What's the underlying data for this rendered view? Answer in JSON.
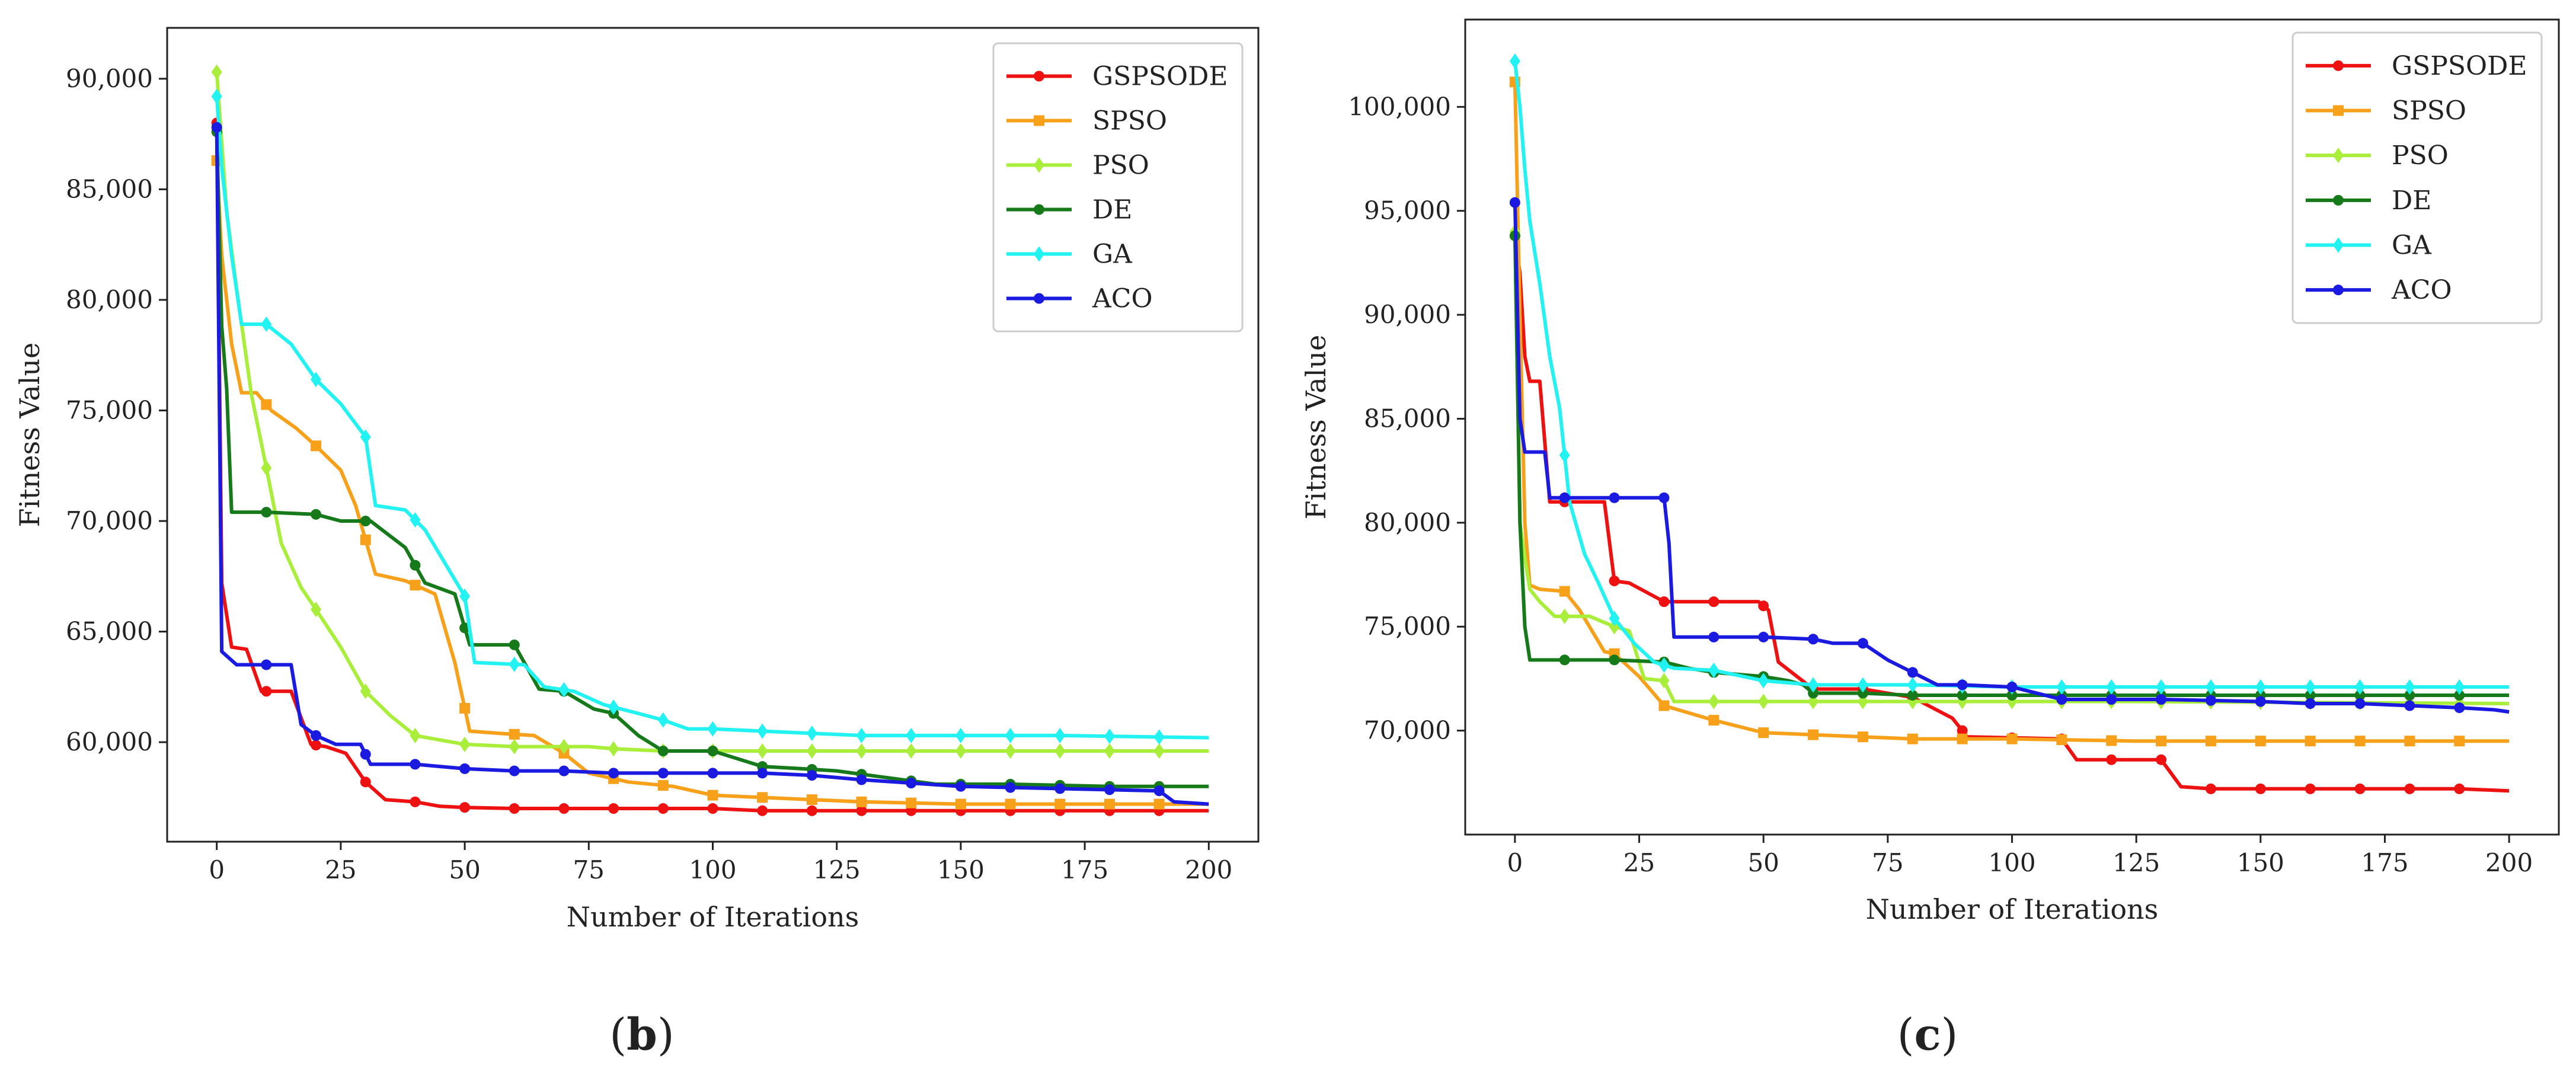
{
  "chart_data": [
    {
      "type": "line",
      "title": "",
      "panel_label": "(b)",
      "panel_label_parts": [
        "(",
        "b",
        ")"
      ],
      "xlabel": "Number of Iterations",
      "ylabel": "Fitness Value",
      "xlim": [
        -10,
        210
      ],
      "ylim": [
        55500,
        92300
      ],
      "xticks": [
        0,
        25,
        50,
        75,
        100,
        125,
        150,
        175,
        200
      ],
      "xtick_labels": [
        "0",
        "25",
        "50",
        "75",
        "100",
        "125",
        "150",
        "175",
        "200"
      ],
      "yticks": [
        60000,
        65000,
        70000,
        75000,
        80000,
        85000,
        90000
      ],
      "ytick_labels": [
        "60,000",
        "65,000",
        "70,000",
        "75,000",
        "80,000",
        "85,000",
        "90,000"
      ],
      "legend_position": "top-right",
      "series": [
        {
          "name": "GSPSODE",
          "color": "#ee1111",
          "marker": "circle",
          "x": [
            0,
            1,
            3,
            6,
            9,
            15,
            19,
            22,
            26,
            30,
            34,
            40,
            45,
            50,
            60,
            70,
            80,
            90,
            100,
            110,
            120,
            140,
            160,
            180,
            200
          ],
          "y": [
            88000,
            67200,
            64300,
            64200,
            62300,
            62300,
            59900,
            59800,
            59500,
            58200,
            57400,
            57300,
            57100,
            57050,
            57000,
            57000,
            57000,
            57000,
            57000,
            56900,
            56900,
            56900,
            56900,
            56900,
            56900
          ]
        },
        {
          "name": "SPSO",
          "color": "#f7a11b",
          "marker": "square",
          "x": [
            0,
            1,
            3,
            5,
            8,
            11,
            16,
            20,
            25,
            28,
            32,
            38,
            44,
            48,
            51,
            57,
            64,
            70,
            75,
            83,
            92,
            100,
            110,
            120,
            130,
            150,
            170,
            200
          ],
          "y": [
            86300,
            82000,
            78000,
            75800,
            75800,
            75000,
            74200,
            73400,
            72300,
            70700,
            67600,
            67300,
            66700,
            63600,
            60500,
            60400,
            60300,
            59500,
            58600,
            58200,
            58000,
            57600,
            57500,
            57400,
            57300,
            57200,
            57200,
            57200
          ]
        },
        {
          "name": "PSO",
          "color": "#a8ee3a",
          "marker": "diamond",
          "x": [
            0,
            2,
            4,
            7,
            10,
            13,
            17,
            20,
            25,
            30,
            35,
            40,
            50,
            60,
            75,
            80,
            90,
            100,
            120,
            150,
            200
          ],
          "y": [
            90300,
            84000,
            80500,
            75700,
            72400,
            69000,
            67000,
            66000,
            64300,
            62300,
            61200,
            60300,
            59900,
            59800,
            59800,
            59700,
            59600,
            59600,
            59600,
            59600,
            59600
          ]
        },
        {
          "name": "DE",
          "color": "#167a1a",
          "marker": "circle",
          "x": [
            0,
            1,
            2,
            3,
            10,
            20,
            25,
            31,
            38,
            42,
            48,
            51,
            60,
            65,
            70,
            76,
            80,
            85,
            90,
            100,
            110,
            118,
            125,
            135,
            145,
            160,
            180,
            200
          ],
          "y": [
            87600,
            78800,
            76000,
            70400,
            70400,
            70300,
            70000,
            70000,
            68800,
            67200,
            66700,
            64400,
            64400,
            62400,
            62300,
            61500,
            61300,
            60300,
            59600,
            59600,
            58900,
            58800,
            58700,
            58400,
            58100,
            58100,
            58000,
            58000
          ]
        },
        {
          "name": "GA",
          "color": "#22f2f2",
          "marker": "diamond",
          "x": [
            0,
            1,
            3,
            5,
            10,
            15,
            20,
            25,
            30,
            32,
            38,
            42,
            50,
            52,
            62,
            66,
            72,
            78,
            85,
            90,
            95,
            100,
            110,
            120,
            130,
            150,
            170,
            200
          ],
          "y": [
            89200,
            86000,
            82000,
            78900,
            78900,
            78000,
            76400,
            75300,
            73800,
            70700,
            70500,
            69600,
            66600,
            63600,
            63500,
            62500,
            62300,
            61700,
            61300,
            61000,
            60600,
            60600,
            60500,
            60400,
            60300,
            60300,
            60300,
            60200
          ]
        },
        {
          "name": "ACO",
          "color": "#1a1ae0",
          "marker": "circle",
          "x": [
            0,
            1,
            2,
            4,
            15,
            17,
            20,
            24,
            29,
            31,
            40,
            50,
            60,
            70,
            80,
            90,
            110,
            120,
            130,
            150,
            170,
            190,
            193,
            200
          ],
          "y": [
            87800,
            64100,
            63900,
            63500,
            63500,
            60800,
            60300,
            59900,
            59900,
            59000,
            59000,
            58800,
            58700,
            58700,
            58600,
            58600,
            58600,
            58500,
            58300,
            58000,
            57900,
            57800,
            57300,
            57200
          ]
        }
      ]
    },
    {
      "type": "line",
      "title": "",
      "panel_label": "(c)",
      "panel_label_parts": [
        "(",
        "c",
        ")"
      ],
      "xlabel": "Number of Iterations",
      "ylabel": "Fitness Value",
      "xlim": [
        -10,
        210
      ],
      "ylim": [
        65000,
        104200
      ],
      "xticks": [
        0,
        25,
        50,
        75,
        100,
        125,
        150,
        175,
        200
      ],
      "xtick_labels": [
        "0",
        "25",
        "50",
        "75",
        "100",
        "125",
        "150",
        "175",
        "200"
      ],
      "yticks": [
        70000,
        75000,
        80000,
        85000,
        90000,
        95000,
        100000
      ],
      "ytick_labels": [
        "70,000",
        "75,000",
        "80,000",
        "85,000",
        "90,000",
        "95,000",
        "100,000"
      ],
      "legend_position": "top-right",
      "series": [
        {
          "name": "GSPSODE",
          "color": "#ee1111",
          "marker": "circle",
          "x": [
            0,
            1,
            2,
            3,
            5,
            7,
            10,
            18,
            20,
            23,
            30,
            40,
            49,
            51,
            53,
            60,
            70,
            80,
            88,
            91,
            110,
            113,
            130,
            134,
            140,
            160,
            180,
            190,
            200
          ],
          "y": [
            93800,
            92000,
            88000,
            86800,
            86800,
            81000,
            81000,
            81000,
            77200,
            77100,
            76200,
            76200,
            76200,
            75800,
            73300,
            72000,
            72000,
            71600,
            70600,
            69700,
            69600,
            68600,
            68600,
            67300,
            67200,
            67200,
            67200,
            67200,
            67100
          ]
        },
        {
          "name": "SPSO",
          "color": "#f7a11b",
          "marker": "square",
          "x": [
            0,
            1,
            2,
            3,
            5,
            10,
            13,
            18,
            20,
            25,
            30,
            40,
            45,
            50,
            60,
            70,
            80,
            90,
            100,
            125,
            150,
            175,
            200
          ],
          "y": [
            101200,
            90000,
            80000,
            77000,
            76800,
            76700,
            75800,
            73800,
            73700,
            72600,
            71200,
            70500,
            70200,
            69900,
            69800,
            69700,
            69600,
            69600,
            69600,
            69500,
            69500,
            69500,
            69500
          ]
        },
        {
          "name": "PSO",
          "color": "#a8ee3a",
          "marker": "diamond",
          "x": [
            0,
            1,
            2,
            3,
            5,
            8,
            15,
            20,
            23,
            26,
            30,
            32,
            40,
            50,
            80,
            125,
            200
          ],
          "y": [
            94000,
            80000,
            78300,
            76800,
            76200,
            75500,
            75500,
            75000,
            74800,
            72500,
            72400,
            71400,
            71400,
            71400,
            71400,
            71400,
            71300
          ]
        },
        {
          "name": "DE",
          "color": "#167a1a",
          "marker": "circle",
          "x": [
            0,
            1,
            2,
            3,
            10,
            20,
            30,
            35,
            40,
            50,
            55,
            58,
            60,
            70,
            80,
            100,
            150,
            200
          ],
          "y": [
            93800,
            80000,
            75000,
            73400,
            73400,
            73400,
            73300,
            73000,
            72800,
            72600,
            72400,
            72200,
            71800,
            71800,
            71700,
            71700,
            71700,
            71700
          ]
        },
        {
          "name": "GA",
          "color": "#22f2f2",
          "marker": "diamond",
          "x": [
            0,
            1,
            2,
            3,
            5,
            7,
            9,
            11,
            14,
            17,
            20,
            24,
            28,
            32,
            40,
            50,
            60,
            70,
            80,
            100,
            125,
            150,
            175,
            200
          ],
          "y": [
            102200,
            100000,
            97000,
            94500,
            91500,
            88000,
            85500,
            81000,
            78500,
            77000,
            75400,
            74200,
            73300,
            73000,
            72900,
            72400,
            72200,
            72200,
            72200,
            72100,
            72100,
            72100,
            72100,
            72100
          ]
        },
        {
          "name": "ACO",
          "color": "#1a1ae0",
          "marker": "circle",
          "x": [
            0,
            1,
            2,
            3,
            6,
            7,
            10,
            20,
            30,
            31,
            32,
            40,
            50,
            60,
            64,
            70,
            75,
            80,
            85,
            90,
            100,
            110,
            130,
            150,
            160,
            170,
            180,
            190,
            197,
            200
          ],
          "y": [
            95400,
            85000,
            83400,
            83400,
            83400,
            81200,
            81200,
            81200,
            81200,
            79000,
            74500,
            74500,
            74500,
            74400,
            74200,
            74200,
            73400,
            72800,
            72200,
            72200,
            72100,
            71500,
            71500,
            71400,
            71300,
            71300,
            71200,
            71100,
            71000,
            70900
          ]
        }
      ]
    }
  ]
}
